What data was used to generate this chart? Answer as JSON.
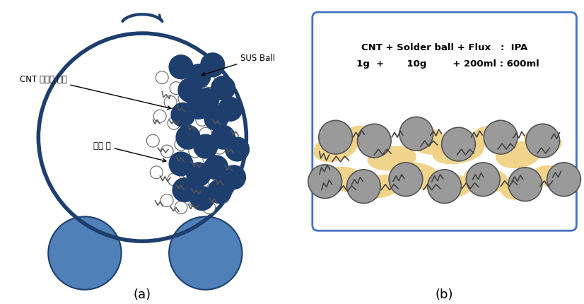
{
  "background_color": "#ffffff",
  "jar_edge_color": "#1e3f6e",
  "jar_fill_color": "#4472c4",
  "wheel_fill_color": "#5080b8",
  "sus_ball_color": "#1e3f6e",
  "solder_ball_color": "#ffffff",
  "gray_ball_color": "#9a9a9a",
  "yellow_flux": "#f0d080",
  "cnt_line_color": "#333333",
  "box_edge_color": "#4472c4",
  "label_a": "(a)",
  "label_b": "(b)",
  "text_cnt": "CNT 비파괴 분산",
  "text_sus": "SUS Ball",
  "text_solder": "솔더 볼",
  "text_formula1": "CNT + Solder ball + Flux   :  IPA",
  "text_formula2": "  1g  +       10g        + 200ml : 600ml"
}
